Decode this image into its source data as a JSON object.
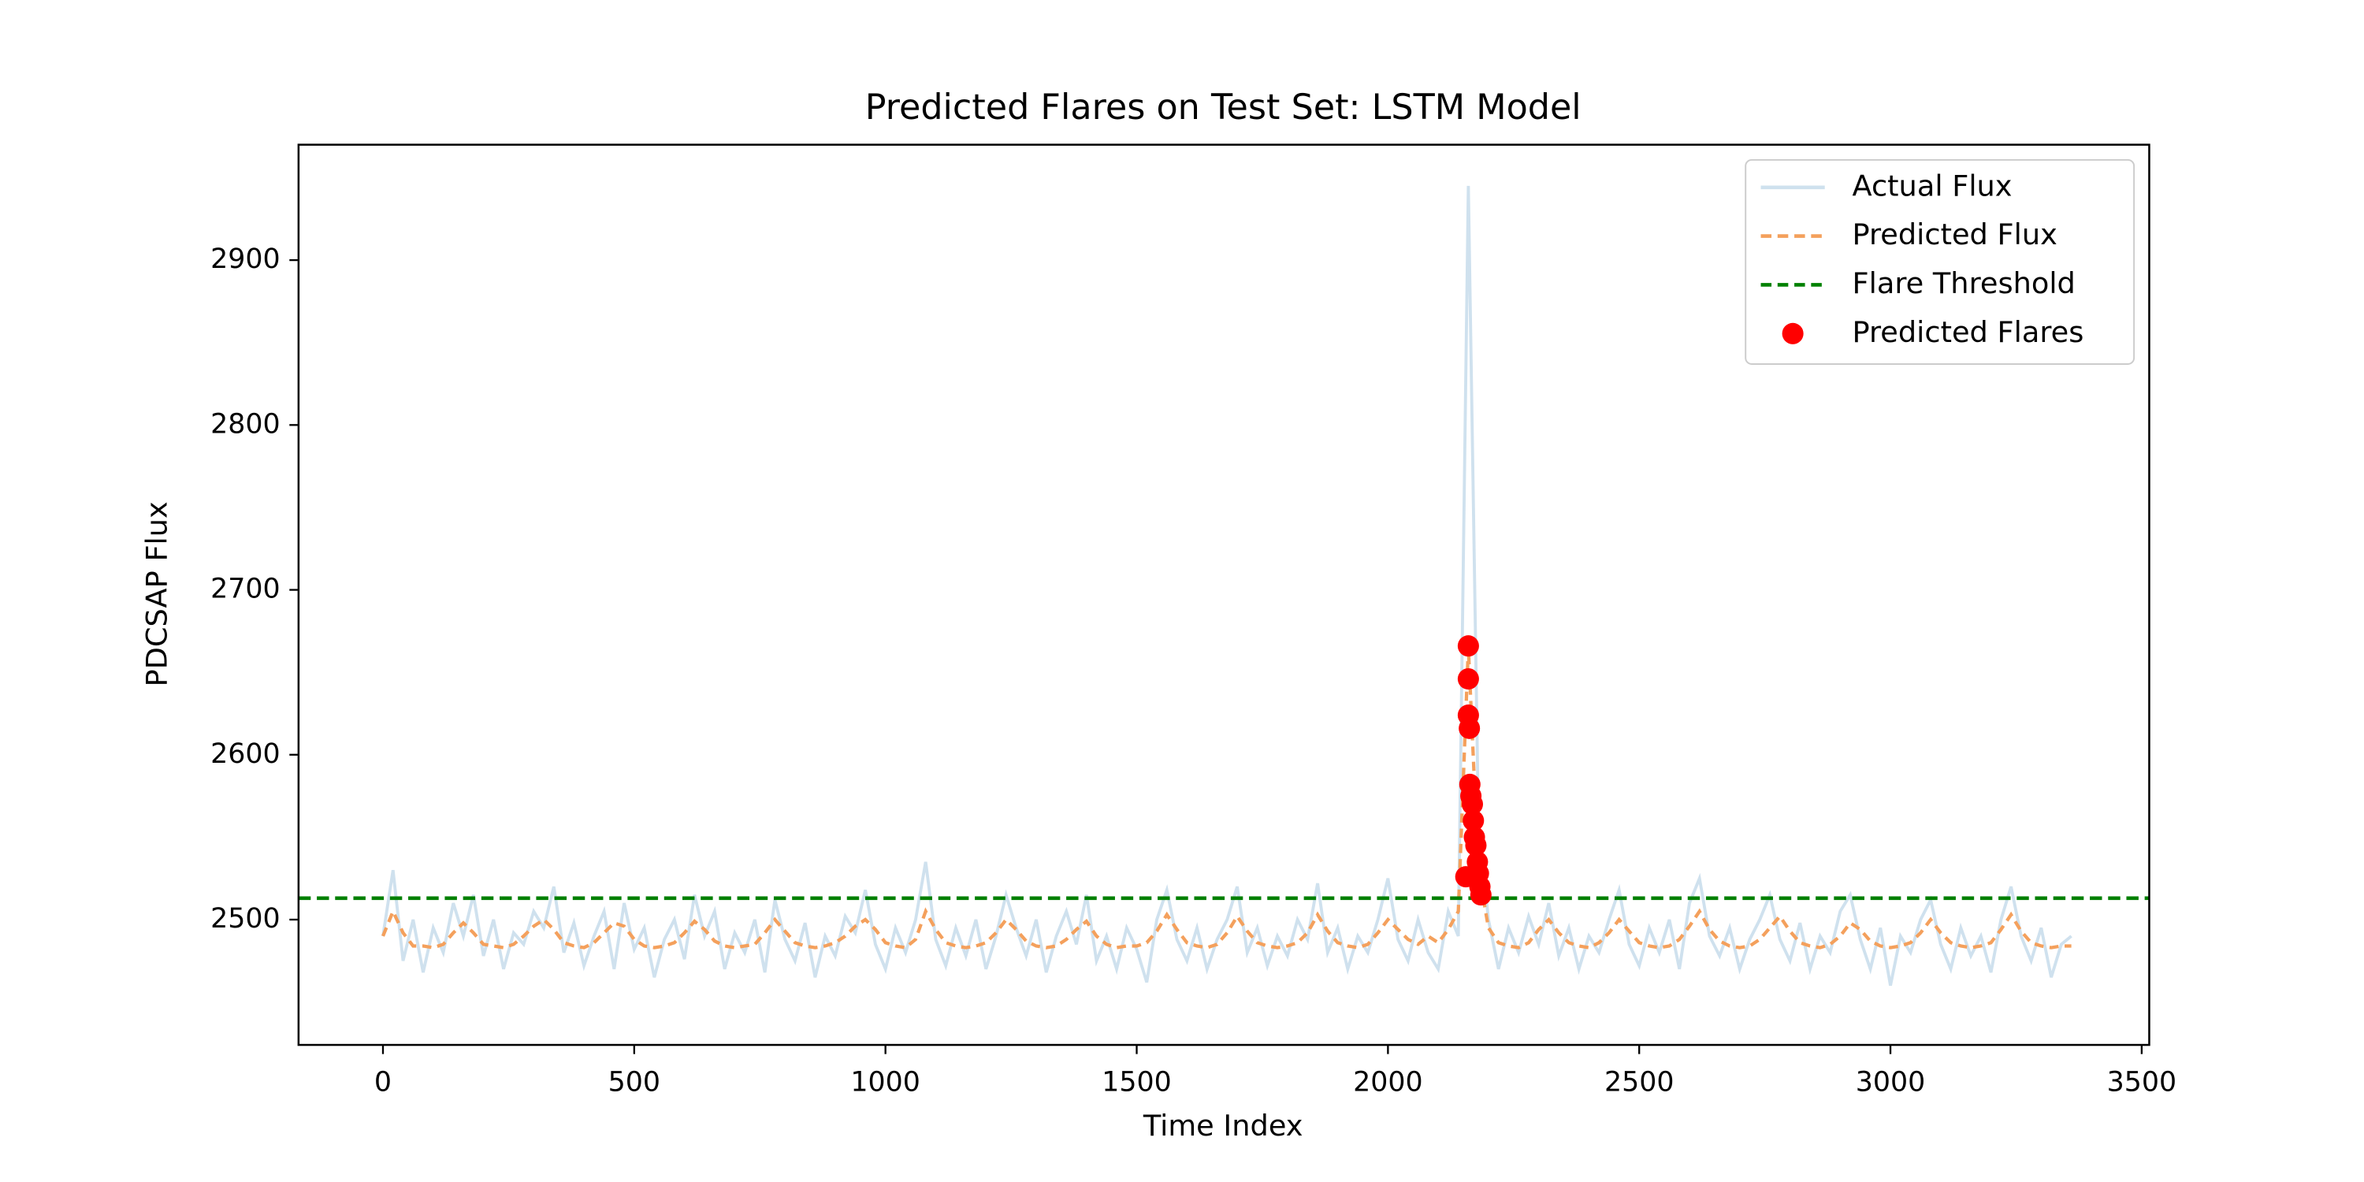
{
  "chart_data": {
    "type": "line",
    "title": "Predicted Flares on Test Set: LSTM Model",
    "xlabel": "Time Index",
    "ylabel": "PDCSAP Flux",
    "xlim": [
      -168,
      3515
    ],
    "ylim": [
      2424,
      2970
    ],
    "xticks": [
      0,
      500,
      1000,
      1500,
      2000,
      2500,
      3000,
      3500
    ],
    "yticks": [
      2500,
      2600,
      2700,
      2800,
      2900
    ],
    "legend": "upper right",
    "x": [
      0,
      20,
      40,
      60,
      80,
      100,
      120,
      140,
      160,
      180,
      200,
      220,
      240,
      260,
      280,
      300,
      320,
      340,
      360,
      380,
      400,
      420,
      440,
      460,
      480,
      500,
      520,
      540,
      560,
      580,
      600,
      620,
      640,
      660,
      680,
      700,
      720,
      740,
      760,
      780,
      800,
      820,
      840,
      860,
      880,
      900,
      920,
      940,
      960,
      980,
      1000,
      1020,
      1040,
      1060,
      1080,
      1100,
      1120,
      1140,
      1160,
      1180,
      1200,
      1220,
      1240,
      1260,
      1280,
      1300,
      1320,
      1340,
      1360,
      1380,
      1400,
      1420,
      1440,
      1460,
      1480,
      1500,
      1520,
      1540,
      1560,
      1580,
      1600,
      1620,
      1640,
      1660,
      1680,
      1700,
      1720,
      1740,
      1760,
      1780,
      1800,
      1820,
      1840,
      1860,
      1880,
      1900,
      1920,
      1940,
      1960,
      1980,
      2000,
      2020,
      2040,
      2060,
      2080,
      2100,
      2120,
      2140,
      2160,
      2180,
      2200,
      2220,
      2240,
      2260,
      2280,
      2300,
      2320,
      2340,
      2360,
      2380,
      2400,
      2420,
      2440,
      2460,
      2480,
      2500,
      2520,
      2540,
      2560,
      2580,
      2600,
      2620,
      2640,
      2660,
      2680,
      2700,
      2720,
      2740,
      2760,
      2780,
      2800,
      2820,
      2840,
      2860,
      2880,
      2900,
      2920,
      2940,
      2960,
      2980,
      3000,
      3020,
      3040,
      3060,
      3080,
      3100,
      3120,
      3140,
      3160,
      3180,
      3200,
      3220,
      3240,
      3260,
      3280,
      3300,
      3320,
      3340,
      3360
    ],
    "series": [
      {
        "name": "Actual Flux",
        "kind": "line",
        "color": "#cfe1ee",
        "values": [
          2490,
          2530,
          2475,
          2500,
          2468,
          2495,
          2480,
          2510,
          2490,
          2515,
          2478,
          2500,
          2470,
          2492,
          2485,
          2505,
          2495,
          2520,
          2480,
          2498,
          2472,
          2490,
          2505,
          2470,
          2510,
          2482,
          2495,
          2465,
          2488,
          2500,
          2476,
          2515,
          2490,
          2505,
          2470,
          2492,
          2480,
          2500,
          2468,
          2512,
          2488,
          2475,
          2498,
          2465,
          2490,
          2478,
          2502,
          2492,
          2518,
          2485,
          2470,
          2495,
          2480,
          2500,
          2535,
          2488,
          2472,
          2495,
          2478,
          2500,
          2470,
          2490,
          2515,
          2495,
          2478,
          2500,
          2468,
          2490,
          2505,
          2485,
          2515,
          2475,
          2490,
          2470,
          2495,
          2482,
          2462,
          2500,
          2518,
          2488,
          2475,
          2495,
          2470,
          2488,
          2500,
          2520,
          2480,
          2495,
          2472,
          2490,
          2478,
          2500,
          2488,
          2522,
          2480,
          2495,
          2470,
          2490,
          2480,
          2500,
          2525,
          2488,
          2475,
          2500,
          2480,
          2470,
          2505,
          2490,
          2945,
          2560,
          2500,
          2470,
          2495,
          2480,
          2502,
          2485,
          2510,
          2478,
          2495,
          2470,
          2490,
          2480,
          2500,
          2518,
          2485,
          2472,
          2495,
          2480,
          2500,
          2470,
          2510,
          2525,
          2490,
          2478,
          2495,
          2470,
          2488,
          2500,
          2515,
          2488,
          2475,
          2498,
          2470,
          2490,
          2480,
          2505,
          2515,
          2488,
          2470,
          2495,
          2460,
          2490,
          2480,
          2500,
          2512,
          2485,
          2470,
          2495,
          2478,
          2490,
          2468,
          2500,
          2520,
          2490,
          2475,
          2495,
          2465,
          2485,
          2490
        ]
      },
      {
        "name": "Predicted Flux",
        "kind": "dashed",
        "color": "#f4a05c",
        "values": [
          2490,
          2505,
          2492,
          2484,
          2484,
          2483,
          2485,
          2492,
          2498,
          2492,
          2485,
          2484,
          2483,
          2485,
          2490,
          2496,
          2500,
          2494,
          2486,
          2484,
          2483,
          2486,
          2492,
          2498,
          2496,
          2488,
          2484,
          2483,
          2484,
          2486,
          2492,
          2499,
          2494,
          2487,
          2484,
          2483,
          2484,
          2485,
          2492,
          2500,
          2493,
          2486,
          2484,
          2483,
          2484,
          2486,
          2490,
          2496,
          2500,
          2494,
          2486,
          2484,
          2483,
          2488,
          2505,
          2494,
          2486,
          2484,
          2483,
          2484,
          2486,
          2492,
          2500,
          2494,
          2487,
          2484,
          2483,
          2484,
          2488,
          2494,
          2499,
          2490,
          2485,
          2483,
          2484,
          2484,
          2486,
          2493,
          2503,
          2494,
          2486,
          2484,
          2483,
          2485,
          2492,
          2502,
          2493,
          2486,
          2484,
          2483,
          2484,
          2486,
          2492,
          2503,
          2493,
          2486,
          2484,
          2483,
          2485,
          2492,
          2500,
          2494,
          2488,
          2485,
          2490,
          2486,
          2494,
          2505,
          2665,
          2530,
          2495,
          2486,
          2484,
          2483,
          2486,
          2494,
          2500,
          2492,
          2486,
          2484,
          2483,
          2486,
          2492,
          2500,
          2493,
          2486,
          2484,
          2483,
          2484,
          2488,
          2496,
          2505,
          2494,
          2487,
          2484,
          2483,
          2484,
          2488,
          2495,
          2502,
          2493,
          2486,
          2484,
          2483,
          2485,
          2490,
          2498,
          2494,
          2487,
          2484,
          2483,
          2484,
          2486,
          2492,
          2500,
          2492,
          2486,
          2484,
          2483,
          2484,
          2486,
          2494,
          2503,
          2493,
          2486,
          2484,
          2483,
          2484,
          2484
        ]
      },
      {
        "name": "Flare Threshold",
        "kind": "hline",
        "color": "#008000",
        "value": 2513
      },
      {
        "name": "Predicted Flares",
        "kind": "scatter",
        "color": "#ff0000",
        "x": [
          2155,
          2160,
          2160,
          2160,
          2162,
          2163,
          2165,
          2168,
          2170,
          2172,
          2175,
          2178,
          2180,
          2183,
          2185
        ],
        "values": [
          2526,
          2666,
          2646,
          2624,
          2616,
          2582,
          2575,
          2570,
          2560,
          2550,
          2545,
          2535,
          2528,
          2520,
          2515
        ]
      }
    ]
  }
}
